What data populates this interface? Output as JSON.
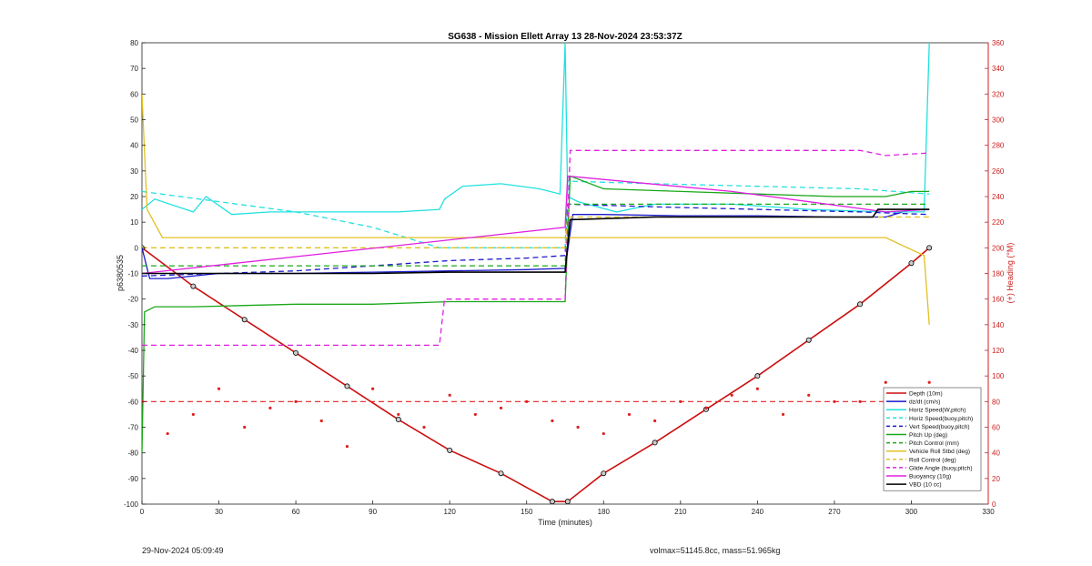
{
  "chart_data": {
    "type": "line",
    "title": "SG638 - Mission Ellett Array 13 28-Nov-2024 23:53:37Z",
    "xlabel": "Time (minutes)",
    "ylabel_left": "p6380535",
    "ylabel_right": "(+) Heading (°M)",
    "xlim": [
      0,
      330
    ],
    "ylim_left": [
      -100,
      80
    ],
    "ylim_right": [
      0,
      360
    ],
    "x_ticks": [
      "0",
      "30",
      "60",
      "90",
      "120",
      "150",
      "180",
      "210",
      "240",
      "270",
      "300",
      "330"
    ],
    "y_left_ticks": [
      "80",
      "70",
      "60",
      "50",
      "40",
      "30",
      "20",
      "10",
      "0",
      "-10",
      "-20",
      "-30",
      "-40",
      "-50",
      "-60",
      "-70",
      "-80",
      "-90",
      "-100"
    ],
    "y_right_ticks": [
      "360",
      "340",
      "320",
      "300",
      "280",
      "260",
      "240",
      "220",
      "200",
      "180",
      "160",
      "140",
      "120",
      "100",
      "80",
      "60",
      "40",
      "20",
      "0"
    ],
    "legend_position": "lower-right",
    "colors": {
      "red": "#e02020",
      "blue": "#1a1acc",
      "cyan": "#22e0e0",
      "green": "#18a818",
      "yellow": "#e0c020",
      "magenta": "#e020e0",
      "black": "#000000",
      "axis_right": "#cc2020"
    },
    "series": [
      {
        "name": "Depth (10m)",
        "color": "#cc1010",
        "style": "solid",
        "x": [
          0,
          20,
          40,
          60,
          80,
          100,
          120,
          140,
          160,
          166,
          180,
          200,
          220,
          240,
          260,
          280,
          300,
          307
        ],
        "y": [
          0,
          -15,
          -28,
          -41,
          -54,
          -67,
          -79,
          -88,
          -99,
          -99,
          -88,
          -76,
          -63,
          -50,
          -36,
          -22,
          -6,
          0
        ]
      },
      {
        "name": "dz/dt (cm/s)",
        "color": "#1a1acc",
        "style": "solid",
        "x": [
          0,
          3,
          10,
          30,
          60,
          90,
          120,
          150,
          165,
          168,
          180,
          210,
          240,
          270,
          290,
          300,
          307
        ],
        "y": [
          0,
          -12,
          -12,
          -10,
          -10,
          -9.5,
          -9,
          -8.5,
          -8,
          13,
          13,
          12.5,
          12.5,
          12,
          12,
          15,
          15
        ]
      },
      {
        "name": "Horiz Speed(W,pitch)",
        "color": "#22e0e0",
        "style": "solid",
        "x": [
          0,
          5,
          20,
          25,
          35,
          50,
          60,
          80,
          100,
          116,
          118,
          125,
          140,
          155,
          163,
          165,
          166,
          170,
          185,
          200,
          230,
          260,
          290,
          305,
          307
        ],
        "y": [
          15,
          19,
          14,
          20,
          13,
          14,
          14,
          14,
          14,
          15,
          19,
          24,
          25,
          23,
          21,
          80,
          20,
          18,
          14,
          17,
          17,
          15,
          14,
          14,
          80
        ]
      },
      {
        "name": "Horiz Speed(buoy,pitch)",
        "color": "#22e0e0",
        "style": "dashed",
        "x": [
          0,
          30,
          60,
          90,
          116,
          118,
          165,
          166,
          200,
          240,
          280,
          307
        ],
        "y": [
          22,
          18,
          14,
          8,
          0,
          0,
          0,
          26,
          25,
          24,
          23,
          21
        ]
      },
      {
        "name": "Vert Speed(buoy,pitch)",
        "color": "#1a1acc",
        "style": "dashed",
        "x": [
          0,
          30,
          60,
          90,
          120,
          150,
          165,
          166,
          200,
          240,
          280,
          307
        ],
        "y": [
          -11,
          -10,
          -9,
          -7,
          -5,
          -4,
          -3,
          17,
          16,
          15,
          14,
          13
        ]
      },
      {
        "name": "Pitch Up (deg)",
        "color": "#18a818",
        "style": "solid",
        "x": [
          0,
          1,
          5,
          20,
          60,
          90,
          120,
          150,
          165,
          167,
          180,
          210,
          240,
          270,
          290,
          300,
          307
        ],
        "y": [
          -80,
          -25,
          -23,
          -23,
          -22,
          -22,
          -21,
          -21,
          -21,
          28,
          23,
          22,
          21,
          20,
          20,
          22,
          22
        ]
      },
      {
        "name": "Pitch Control (mm)",
        "color": "#18a818",
        "style": "dashed",
        "x": [
          0,
          30,
          60,
          90,
          120,
          150,
          165,
          166,
          200,
          240,
          280,
          307
        ],
        "y": [
          -7,
          -7,
          -7,
          -7,
          -7,
          -7,
          -7,
          17,
          17,
          17,
          17,
          17
        ]
      },
      {
        "name": "Vehicle Roll Stbd (deg)",
        "color": "#e0c020",
        "style": "solid",
        "x": [
          0,
          2,
          8,
          30,
          60,
          90,
          120,
          150,
          165,
          167,
          190,
          230,
          260,
          290,
          305,
          307
        ],
        "y": [
          60,
          15,
          4,
          4,
          4,
          4,
          4,
          4,
          4,
          4,
          4,
          4,
          4,
          4,
          -3,
          -30
        ]
      },
      {
        "name": "Roll Control (deg)",
        "color": "#e0c020",
        "style": "dashed",
        "x": [
          0,
          30,
          60,
          90,
          120,
          150,
          165,
          166,
          200,
          240,
          280,
          307
        ],
        "y": [
          0,
          0,
          0,
          0,
          0,
          0,
          0,
          12,
          12,
          12,
          12,
          12
        ]
      },
      {
        "name": "Glide Angle (buoy,pitch)",
        "color": "#e020e0",
        "style": "dashed",
        "x": [
          0,
          10,
          30,
          60,
          90,
          116,
          118,
          150,
          165,
          167,
          200,
          240,
          280,
          290,
          307
        ],
        "y": [
          -38,
          -38,
          -38,
          -38,
          -38,
          -38,
          -20,
          -20,
          -20,
          38,
          38,
          38,
          38,
          36,
          37
        ]
      },
      {
        "name": "Buoyancy (10g)",
        "color": "#e020e0",
        "style": "solid",
        "x": [
          0,
          165,
          166,
          230,
          290,
          307
        ],
        "y": [
          -10,
          8,
          28,
          22,
          14,
          15
        ]
      },
      {
        "name": "VBD (10 cc)",
        "color": "#000000",
        "style": "solid",
        "x": [
          0,
          30,
          60,
          90,
          120,
          150,
          165,
          167,
          200,
          240,
          285,
          287,
          300,
          307
        ],
        "y": [
          -10,
          -10,
          -10,
          -10,
          -9.5,
          -9.5,
          -9.5,
          11,
          12,
          12,
          12,
          15,
          15,
          15
        ]
      }
    ],
    "heading": {
      "x": [
        0,
        10,
        20,
        30,
        40,
        50,
        60,
        70,
        80,
        90,
        100,
        110,
        120,
        130,
        140,
        150,
        160,
        170,
        180,
        190,
        200,
        210,
        220,
        230,
        240,
        250,
        260,
        270,
        280,
        290,
        300,
        307
      ],
      "y": [
        80,
        55,
        70,
        90,
        60,
        75,
        80,
        65,
        45,
        90,
        70,
        60,
        85,
        70,
        75,
        80,
        65,
        60,
        55,
        70,
        65,
        80,
        75,
        85,
        90,
        70,
        85,
        80,
        80,
        95,
        85,
        95
      ],
      "mean": 80
    }
  },
  "footer": {
    "timestamp": "29-Nov-2024 05:09:49",
    "info": "volmax=51145.8cc, mass=51.965kg"
  }
}
